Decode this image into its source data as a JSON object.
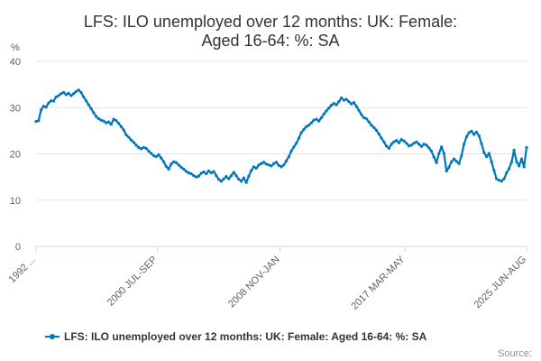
{
  "chart_data": {
    "type": "line",
    "title": "LFS: ILO unemployed over 12 months: UK: Female: Aged 16-64: %: SA",
    "ylabel": "%",
    "xlabel": "",
    "ylim": [
      0,
      40
    ],
    "yticks": [
      "0",
      "10",
      "20",
      "30",
      "40"
    ],
    "xtick_labels": [
      {
        "period": 0,
        "label": "1992 ..."
      },
      {
        "period": 97,
        "label": "2000 JUL-SEP"
      },
      {
        "period": 195,
        "label": "2008 NOV-JAN"
      },
      {
        "period": 295,
        "label": "2017 MAR-MAY"
      },
      {
        "period": 392,
        "label": "2025 JUN-AUG"
      }
    ],
    "x_period": "rolling three-month period",
    "grid": true,
    "legend_position": "bottom",
    "series": [
      {
        "name": "LFS: ILO unemployed over 12 months: UK: Female: Aged 16-64: %: SA",
        "color": "#0077bb",
        "points": [
          [
            0,
            27
          ],
          [
            2,
            27.2
          ],
          [
            4,
            29.5
          ],
          [
            6,
            30.3
          ],
          [
            8,
            30.1
          ],
          [
            10,
            31
          ],
          [
            12,
            31.5
          ],
          [
            14,
            31.4
          ],
          [
            16,
            32.3
          ],
          [
            18,
            32.6
          ],
          [
            20,
            33
          ],
          [
            22,
            33.3
          ],
          [
            24,
            32.8
          ],
          [
            26,
            33.1
          ],
          [
            28,
            32.6
          ],
          [
            30,
            33
          ],
          [
            32,
            33.5
          ],
          [
            34,
            33.8
          ],
          [
            36,
            33.3
          ],
          [
            38,
            32.3
          ],
          [
            40,
            31.5
          ],
          [
            42,
            30.6
          ],
          [
            44,
            29.8
          ],
          [
            46,
            28.9
          ],
          [
            48,
            28.1
          ],
          [
            50,
            27.6
          ],
          [
            52,
            27.3
          ],
          [
            54,
            27.1
          ],
          [
            56,
            26.7
          ],
          [
            58,
            26.9
          ],
          [
            60,
            26.4
          ],
          [
            62,
            27.5
          ],
          [
            64,
            27.2
          ],
          [
            66,
            26.6
          ],
          [
            68,
            25.9
          ],
          [
            70,
            25.2
          ],
          [
            72,
            24.1
          ],
          [
            74,
            23.6
          ],
          [
            76,
            23
          ],
          [
            78,
            22.5
          ],
          [
            80,
            21.9
          ],
          [
            82,
            21.4
          ],
          [
            84,
            21.1
          ],
          [
            86,
            21.4
          ],
          [
            88,
            21.2
          ],
          [
            90,
            20.6
          ],
          [
            92,
            20.1
          ],
          [
            94,
            19.6
          ],
          [
            96,
            19.4
          ],
          [
            98,
            19.8
          ],
          [
            100,
            19.1
          ],
          [
            102,
            18.3
          ],
          [
            104,
            17.3
          ],
          [
            106,
            16.7
          ],
          [
            108,
            17.8
          ],
          [
            110,
            18.3
          ],
          [
            112,
            18.1
          ],
          [
            114,
            17.6
          ],
          [
            116,
            17.1
          ],
          [
            118,
            16.7
          ],
          [
            120,
            16.2
          ],
          [
            122,
            15.9
          ],
          [
            124,
            15.7
          ],
          [
            126,
            15.3
          ],
          [
            128,
            15
          ],
          [
            130,
            15.2
          ],
          [
            132,
            15.8
          ],
          [
            134,
            16.1
          ],
          [
            136,
            15.7
          ],
          [
            138,
            16.3
          ],
          [
            140,
            15.9
          ],
          [
            142,
            16.2
          ],
          [
            144,
            15.3
          ],
          [
            146,
            14.5
          ],
          [
            148,
            14.1
          ],
          [
            150,
            14.6
          ],
          [
            152,
            15.1
          ],
          [
            154,
            14.6
          ],
          [
            156,
            15.3
          ],
          [
            158,
            16
          ],
          [
            160,
            15.3
          ],
          [
            162,
            14.5
          ],
          [
            164,
            14.1
          ],
          [
            166,
            14.8
          ],
          [
            168,
            13.8
          ],
          [
            170,
            15.2
          ],
          [
            172,
            16.4
          ],
          [
            174,
            17.2
          ],
          [
            176,
            16.9
          ],
          [
            178,
            17.6
          ],
          [
            180,
            17.9
          ],
          [
            182,
            18.2
          ],
          [
            184,
            17.8
          ],
          [
            186,
            17.6
          ],
          [
            188,
            17.4
          ],
          [
            190,
            17.9
          ],
          [
            192,
            18.2
          ],
          [
            194,
            17.5
          ],
          [
            196,
            17.2
          ],
          [
            198,
            17.6
          ],
          [
            200,
            18.5
          ],
          [
            202,
            19.4
          ],
          [
            204,
            20.6
          ],
          [
            206,
            21.5
          ],
          [
            208,
            22.3
          ],
          [
            210,
            23.4
          ],
          [
            212,
            24.6
          ],
          [
            214,
            25.3
          ],
          [
            216,
            25.9
          ],
          [
            218,
            26.2
          ],
          [
            220,
            26.7
          ],
          [
            222,
            27.3
          ],
          [
            224,
            27.5
          ],
          [
            226,
            27.1
          ],
          [
            228,
            27.8
          ],
          [
            230,
            28.6
          ],
          [
            232,
            29.3
          ],
          [
            234,
            29.9
          ],
          [
            236,
            30.5
          ],
          [
            238,
            30.9
          ],
          [
            240,
            30.6
          ],
          [
            242,
            31.3
          ],
          [
            244,
            32.1
          ],
          [
            246,
            31.6
          ],
          [
            248,
            31.8
          ],
          [
            250,
            31.3
          ],
          [
            252,
            30.8
          ],
          [
            254,
            31.1
          ],
          [
            256,
            30.3
          ],
          [
            258,
            29.4
          ],
          [
            260,
            28.5
          ],
          [
            262,
            27.8
          ],
          [
            264,
            27.6
          ],
          [
            266,
            26.9
          ],
          [
            268,
            26.2
          ],
          [
            270,
            25.7
          ],
          [
            272,
            25.1
          ],
          [
            274,
            24.3
          ],
          [
            276,
            23.4
          ],
          [
            278,
            22.6
          ],
          [
            280,
            21.7
          ],
          [
            282,
            21.2
          ],
          [
            284,
            22.1
          ],
          [
            286,
            22.6
          ],
          [
            288,
            22.9
          ],
          [
            290,
            22.4
          ],
          [
            292,
            23.1
          ],
          [
            294,
            22.8
          ],
          [
            296,
            22.3
          ],
          [
            298,
            21.7
          ],
          [
            300,
            21.9
          ],
          [
            302,
            22.3
          ],
          [
            304,
            22.6
          ],
          [
            306,
            22.1
          ],
          [
            308,
            21.6
          ],
          [
            310,
            22.1
          ],
          [
            312,
            21.9
          ],
          [
            314,
            21.3
          ],
          [
            316,
            20.6
          ],
          [
            318,
            19.3
          ],
          [
            320,
            18.1
          ],
          [
            322,
            20.1
          ],
          [
            324,
            21.5
          ],
          [
            326,
            20.1
          ],
          [
            328,
            16.3
          ],
          [
            330,
            17.1
          ],
          [
            332,
            18.3
          ],
          [
            334,
            18.9
          ],
          [
            336,
            18.4
          ],
          [
            338,
            17.9
          ],
          [
            340,
            19.6
          ],
          [
            342,
            22.1
          ],
          [
            344,
            23.7
          ],
          [
            346,
            24.6
          ],
          [
            348,
            24.9
          ],
          [
            350,
            24.2
          ],
          [
            352,
            24.7
          ],
          [
            354,
            23.9
          ],
          [
            356,
            22.2
          ],
          [
            358,
            20.3
          ],
          [
            360,
            19.4
          ],
          [
            362,
            20.1
          ],
          [
            364,
            18.3
          ],
          [
            366,
            16.4
          ],
          [
            368,
            14.6
          ],
          [
            370,
            14.3
          ],
          [
            372,
            14.1
          ],
          [
            374,
            14.6
          ],
          [
            376,
            15.9
          ],
          [
            378,
            16.8
          ],
          [
            380,
            18.2
          ],
          [
            382,
            20.8
          ],
          [
            384,
            18.3
          ],
          [
            386,
            17.4
          ],
          [
            388,
            18.9
          ],
          [
            390,
            17.2
          ],
          [
            392,
            21.4
          ]
        ]
      }
    ],
    "credits": "Source:"
  }
}
